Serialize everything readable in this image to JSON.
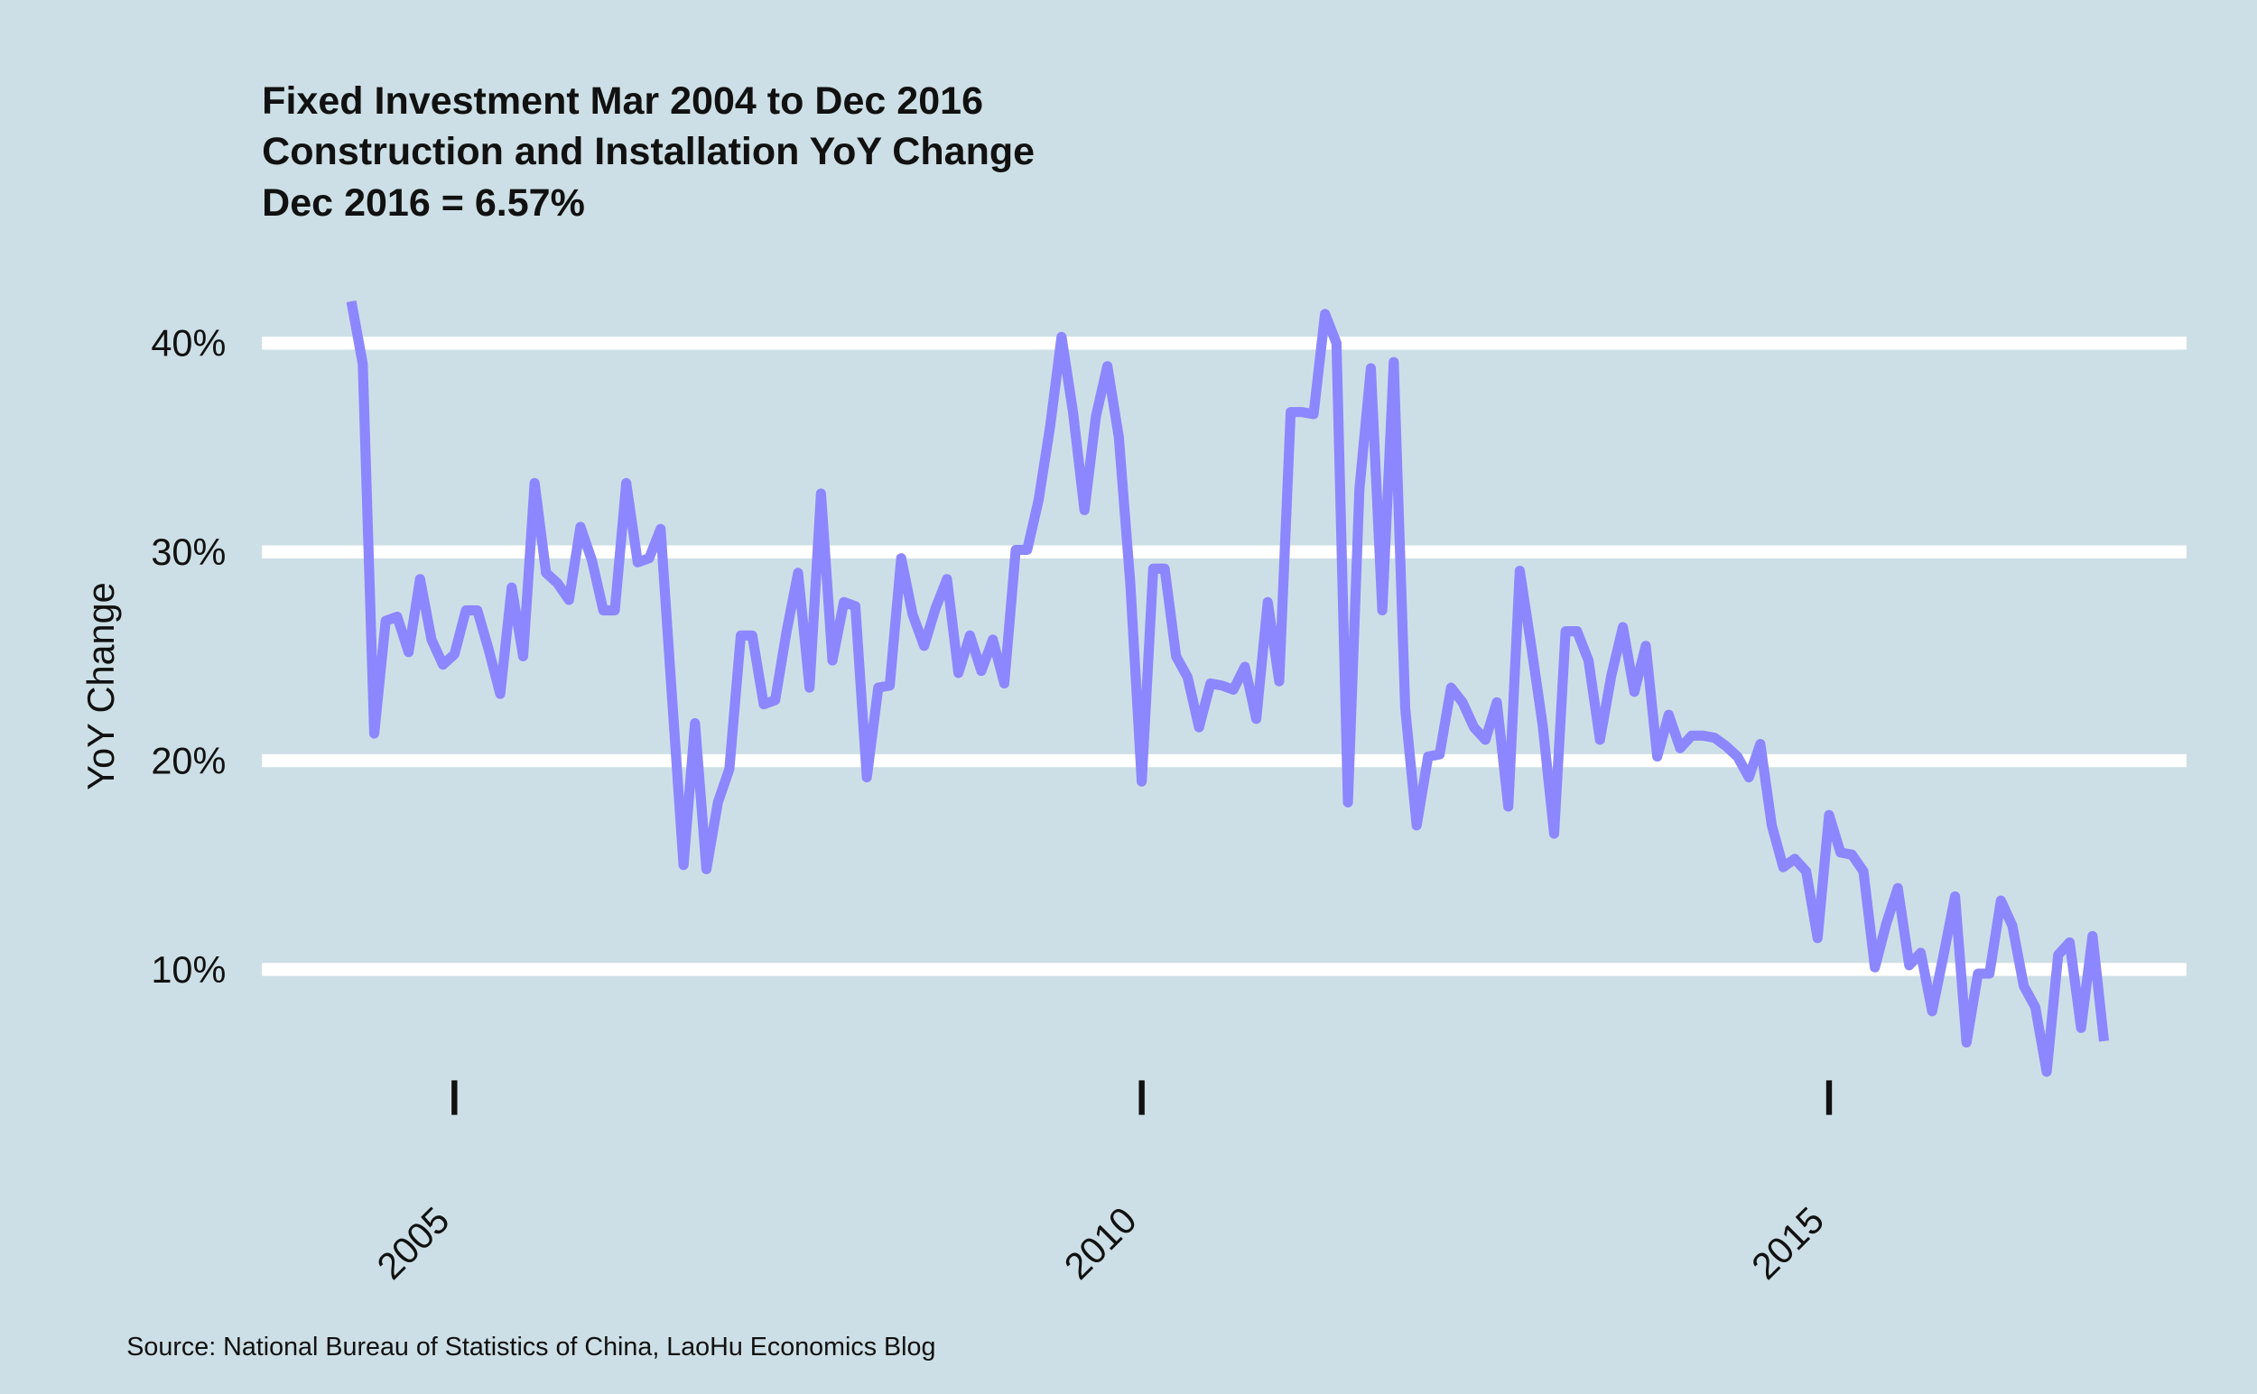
{
  "chart_data": {
    "type": "line",
    "title": "Fixed Investment Mar 2004 to Dec 2016",
    "subtitle": "Construction and Installation YoY Change",
    "annotation": "Dec 2016 = 6.57%",
    "y_label": "YoY Change",
    "source": "Source: National Bureau of Statistics of China, LaoHu Economics Blog",
    "x": [
      "2004-03",
      "2004-04",
      "2004-05",
      "2004-06",
      "2004-07",
      "2004-08",
      "2004-09",
      "2004-10",
      "2004-11",
      "2004-12",
      "2005-01",
      "2005-02",
      "2005-03",
      "2005-04",
      "2005-05",
      "2005-06",
      "2005-07",
      "2005-08",
      "2005-09",
      "2005-10",
      "2005-11",
      "2005-12",
      "2006-01",
      "2006-02",
      "2006-03",
      "2006-04",
      "2006-05",
      "2006-06",
      "2006-07",
      "2006-08",
      "2006-09",
      "2006-10",
      "2006-11",
      "2006-12",
      "2007-01",
      "2007-02",
      "2007-03",
      "2007-04",
      "2007-05",
      "2007-06",
      "2007-07",
      "2007-08",
      "2007-09",
      "2007-10",
      "2007-11",
      "2007-12",
      "2008-01",
      "2008-02",
      "2008-03",
      "2008-04",
      "2008-05",
      "2008-06",
      "2008-07",
      "2008-08",
      "2008-09",
      "2008-10",
      "2008-11",
      "2008-12",
      "2009-01",
      "2009-02",
      "2009-03",
      "2009-04",
      "2009-05",
      "2009-06",
      "2009-07",
      "2009-08",
      "2009-09",
      "2009-10",
      "2009-11",
      "2009-12",
      "2010-01",
      "2010-02",
      "2010-03",
      "2010-04",
      "2010-05",
      "2010-06",
      "2010-07",
      "2010-08",
      "2010-09",
      "2010-10",
      "2010-11",
      "2010-12",
      "2011-01",
      "2011-02",
      "2011-03",
      "2011-04",
      "2011-05",
      "2011-06",
      "2011-07",
      "2011-08",
      "2011-09",
      "2011-10",
      "2011-11",
      "2011-12",
      "2012-01",
      "2012-02",
      "2012-03",
      "2012-04",
      "2012-05",
      "2012-06",
      "2012-07",
      "2012-08",
      "2012-09",
      "2012-10",
      "2012-11",
      "2012-12",
      "2013-01",
      "2013-02",
      "2013-03",
      "2013-04",
      "2013-05",
      "2013-06",
      "2013-07",
      "2013-08",
      "2013-09",
      "2013-10",
      "2013-11",
      "2013-12",
      "2014-01",
      "2014-02",
      "2014-03",
      "2014-04",
      "2014-05",
      "2014-06",
      "2014-07",
      "2014-08",
      "2014-09",
      "2014-10",
      "2014-11",
      "2014-12",
      "2015-01",
      "2015-02",
      "2015-03",
      "2015-04",
      "2015-05",
      "2015-06",
      "2015-07",
      "2015-08",
      "2015-09",
      "2015-10",
      "2015-11",
      "2015-12",
      "2016-01",
      "2016-02",
      "2016-03",
      "2016-04",
      "2016-05",
      "2016-06",
      "2016-07",
      "2016-08",
      "2016-09",
      "2016-10",
      "2016-11",
      "2016-12"
    ],
    "series": [
      {
        "name": "YoY Change",
        "color": "#8c87ff",
        "values": [
          42,
          39,
          21.3,
          26.7,
          26.9,
          25.2,
          28.7,
          25.8,
          24.6,
          25.1,
          27.2,
          27.2,
          25.3,
          23.2,
          28.3,
          25.0,
          33.3,
          29.0,
          28.5,
          27.7,
          31.2,
          29.6,
          27.2,
          27.2,
          33.3,
          29.5,
          29.7,
          31.1,
          23.0,
          15.0,
          21.8,
          14.8,
          18.0,
          19.6,
          26.0,
          26.0,
          22.7,
          22.9,
          26.2,
          29.0,
          23.5,
          32.8,
          24.8,
          27.6,
          27.4,
          19.2,
          23.5,
          23.6,
          29.7,
          27.0,
          25.5,
          27.3,
          28.7,
          24.2,
          26.0,
          24.3,
          25.8,
          23.7,
          30.1,
          30.1,
          32.5,
          36.0,
          40.3,
          36.7,
          32.0,
          36.5,
          38.9,
          35.5,
          28.5,
          19.0,
          29.2,
          29.2,
          25.0,
          24.0,
          21.6,
          23.7,
          23.6,
          23.4,
          24.5,
          22.0,
          27.6,
          23.8,
          36.7,
          36.7,
          36.6,
          41.4,
          40.0,
          18.0,
          33.0,
          38.8,
          27.2,
          39.1,
          22.5,
          16.9,
          20.2,
          20.3,
          23.5,
          22.8,
          21.6,
          21.0,
          22.8,
          17.8,
          29.1,
          25.5,
          21.7,
          16.5,
          26.2,
          26.2,
          24.8,
          21.0,
          24.1,
          26.4,
          23.3,
          25.5,
          20.2,
          22.2,
          20.6,
          21.2,
          21.2,
          21.1,
          20.7,
          20.2,
          19.2,
          20.8,
          16.9,
          14.9,
          15.3,
          14.7,
          11.5,
          17.4,
          15.6,
          15.5,
          14.7,
          10.1,
          12.2,
          13.9,
          10.2,
          10.8,
          8.0,
          10.7,
          13.5,
          6.5,
          9.8,
          9.8,
          13.3,
          12.1,
          9.2,
          8.2,
          5.1,
          10.7,
          11.3,
          7.2,
          11.6,
          6.57
        ]
      }
    ],
    "xlim": [
      2003.6,
      2017.6
    ],
    "xticks": [
      2005,
      2010,
      2015
    ],
    "ylim": [
      2,
      43
    ],
    "yticks": [
      {
        "value": 10,
        "label": "10%"
      },
      {
        "value": 20,
        "label": "20%"
      },
      {
        "value": 30,
        "label": "30%"
      },
      {
        "value": 40,
        "label": "40%"
      }
    ],
    "grid": true
  }
}
